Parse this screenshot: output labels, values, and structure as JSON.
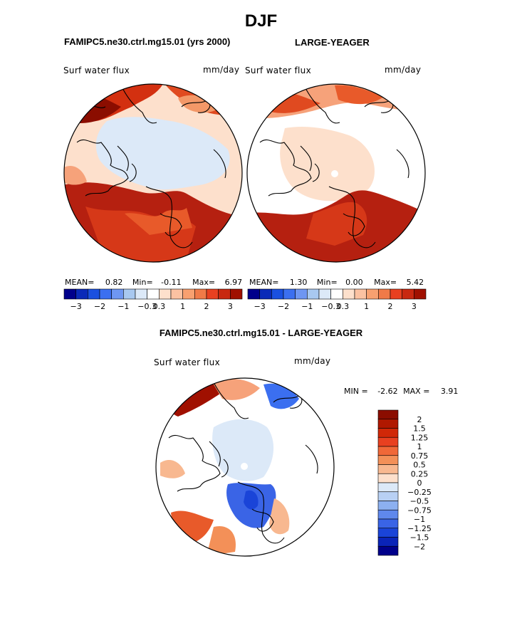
{
  "title": "DJF",
  "variable_label": "Surf water flux",
  "units_label": "mm/day",
  "panels": [
    {
      "case_name": "FAMIPC5.ne30.ctrl.mg15.01 (yrs 2000)",
      "stats": {
        "mean_label": "MEAN=",
        "mean": "0.82",
        "min_label": "Min=",
        "min": "-0.11",
        "max_label": "Max=",
        "max": "6.97"
      }
    },
    {
      "case_name": "LARGE-YEAGER",
      "stats": {
        "mean_label": "MEAN=",
        "mean": "1.30",
        "min_label": "Min=",
        "min": "0.00",
        "max_label": "Max=",
        "max": "5.42"
      }
    }
  ],
  "diff_panel": {
    "title": "FAMIPC5.ne30.ctrl.mg15.01 - LARGE-YEAGER",
    "stats": {
      "min_label": "MIN =",
      "min": "-2.62",
      "max_label": "MAX =",
      "max": "3.91"
    }
  },
  "colors": {
    "neg_dark": "#00008b",
    "neg_mid": "#1a50e0",
    "neg_light": "#a8c8f0",
    "neg_pale": "#dce9f8",
    "pos_pale": "#fde0cc",
    "pos_light": "#f8a070",
    "pos_mid": "#e84020",
    "pos_dark": "#a01000",
    "white": "#ffffff"
  },
  "chart_data": [
    {
      "type": "heatmap",
      "projection": "north-polar-stereographic",
      "title": "FAMIPC5.ne30.ctrl.mg15.01 (yrs 2000)",
      "variable": "Surf water flux",
      "units": "mm/day",
      "colorbar": {
        "orientation": "horizontal",
        "levels": [
          -3,
          -2,
          -1,
          -0.3,
          0.3,
          1,
          2,
          3
        ],
        "tick_labels": [
          "−3",
          "−2",
          "−1",
          "−0.3",
          "0.3",
          "1",
          "2",
          "3"
        ],
        "colors": [
          "#00008b",
          "#0a2ab8",
          "#1a50e0",
          "#3b6ff0",
          "#6e96f2",
          "#a8c8f0",
          "#dce9f8",
          "#ffffff",
          "#fde0cc",
          "#fbc2a2",
          "#f8a070",
          "#f07a48",
          "#e84020",
          "#c82810",
          "#a01000"
        ]
      },
      "stats": {
        "mean": 0.82,
        "min": -0.11,
        "max": 6.97
      }
    },
    {
      "type": "heatmap",
      "projection": "north-polar-stereographic",
      "title": "LARGE-YEAGER",
      "variable": "Surf water flux",
      "units": "mm/day",
      "colorbar": {
        "orientation": "horizontal",
        "levels": [
          -3,
          -2,
          -1,
          -0.3,
          0.3,
          1,
          2,
          3
        ],
        "tick_labels": [
          "−3",
          "−2",
          "−1",
          "−0.3",
          "0.3",
          "1",
          "2",
          "3"
        ],
        "colors": [
          "#00008b",
          "#0a2ab8",
          "#1a50e0",
          "#3b6ff0",
          "#6e96f2",
          "#a8c8f0",
          "#dce9f8",
          "#ffffff",
          "#fde0cc",
          "#fbc2a2",
          "#f8a070",
          "#f07a48",
          "#e84020",
          "#c82810",
          "#a01000"
        ]
      },
      "stats": {
        "mean": 1.3,
        "min": 0.0,
        "max": 5.42
      }
    },
    {
      "type": "heatmap",
      "projection": "north-polar-stereographic",
      "title": "FAMIPC5.ne30.ctrl.mg15.01 - LARGE-YEAGER",
      "variable": "Surf water flux",
      "units": "mm/day",
      "colorbar": {
        "orientation": "vertical",
        "tick_labels": [
          "2",
          "1.5",
          "1.25",
          "1",
          "0.75",
          "0.5",
          "0.25",
          "0",
          "−0.25",
          "−0.5",
          "−0.75",
          "−1",
          "−1.25",
          "−1.5",
          "−2"
        ],
        "colors": [
          "#8b0d00",
          "#b01800",
          "#d02808",
          "#e84020",
          "#f06838",
          "#f39058",
          "#f8b890",
          "#fde0cc",
          "#dce9f8",
          "#b8d0f4",
          "#8cb0f0",
          "#5f88ec",
          "#3a64e6",
          "#1a44d8",
          "#0a24b8",
          "#00008b"
        ]
      },
      "stats": {
        "min": -2.62,
        "max": 3.91
      }
    }
  ]
}
